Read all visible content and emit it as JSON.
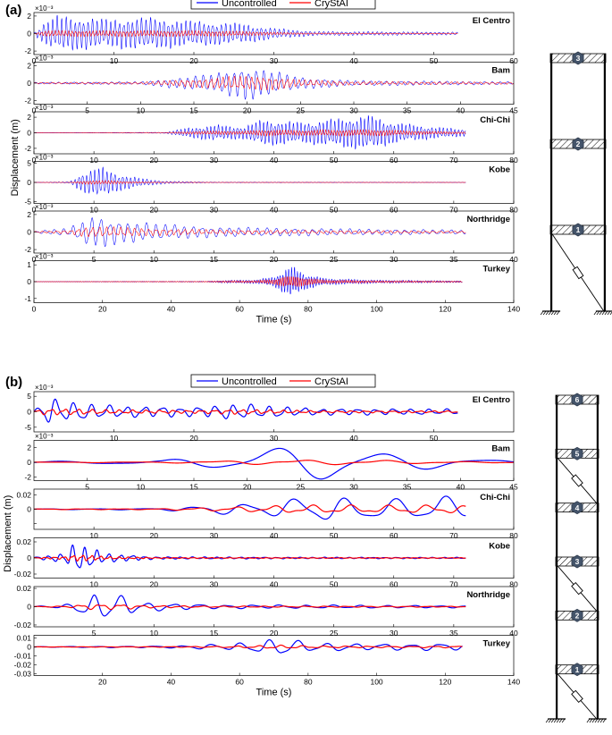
{
  "legend": {
    "uncontrolled": "Uncontrolled",
    "crystal": "CryStAI",
    "colors": {
      "uncontrolled": "#0000ff",
      "crystal": "#ff0000"
    }
  },
  "parts": [
    {
      "label": "(a)",
      "ylabel": "Displacement (m)",
      "xlabel": "Time (s)",
      "structure": {
        "stories": 3,
        "braced_stories": [
          1
        ]
      },
      "panels": [
        {
          "name": "El Centro",
          "exp": "×10⁻³",
          "xlim": [
            0,
            60
          ],
          "xticks": [
            0,
            10,
            20,
            30,
            40,
            50,
            60
          ],
          "yticks": [
            -2,
            0,
            2
          ],
          "ytick_labels": [
            "-2",
            "0",
            "2"
          ],
          "ylim": [
            -2.4,
            2.4
          ],
          "duration": 53,
          "ampU": 2.1,
          "ampC": 0.35,
          "freq": 1.8,
          "env": [
            [
              0,
              0.05
            ],
            [
              1.5,
              0.7
            ],
            [
              3,
              1
            ],
            [
              9,
              0.8
            ],
            [
              14,
              0.9
            ],
            [
              20,
              0.7
            ],
            [
              26,
              0.55
            ],
            [
              30,
              0.3
            ],
            [
              35,
              0.12
            ],
            [
              53,
              0.08
            ]
          ]
        },
        {
          "name": "Bam",
          "exp": "×10⁻³",
          "xlim": [
            0,
            45
          ],
          "xticks": [
            0,
            5,
            10,
            15,
            20,
            25,
            30,
            35,
            40,
            45
          ],
          "yticks": [
            -2,
            0,
            2
          ],
          "ytick_labels": [
            "-2",
            "0",
            "2"
          ],
          "ylim": [
            -2.4,
            2.4
          ],
          "duration": 45,
          "ampU": 2.0,
          "ampC": 0.8,
          "freq": 1.4,
          "env": [
            [
              0,
              0.05
            ],
            [
              10,
              0.08
            ],
            [
              14,
              0.35
            ],
            [
              17,
              0.55
            ],
            [
              20,
              1
            ],
            [
              22,
              0.75
            ],
            [
              25,
              0.35
            ],
            [
              30,
              0.15
            ],
            [
              45,
              0.08
            ]
          ]
        },
        {
          "name": "Chi-Chi",
          "exp": "×10⁻³",
          "xlim": [
            0,
            80
          ],
          "xticks": [
            0,
            10,
            20,
            30,
            40,
            50,
            60,
            70,
            80
          ],
          "yticks": [
            -2,
            0,
            2
          ],
          "ytick_labels": [
            "-2",
            "0",
            "2"
          ],
          "ylim": [
            -2.7,
            2.7
          ],
          "duration": 72,
          "ampU": 2.3,
          "ampC": 0.4,
          "freq": 1.6,
          "env": [
            [
              0,
              0
            ],
            [
              22,
              0.03
            ],
            [
              25,
              0.25
            ],
            [
              30,
              0.45
            ],
            [
              35,
              0.35
            ],
            [
              38,
              0.75
            ],
            [
              45,
              0.6
            ],
            [
              50,
              0.8
            ],
            [
              56,
              1
            ],
            [
              60,
              0.6
            ],
            [
              66,
              0.35
            ],
            [
              72,
              0.2
            ]
          ]
        },
        {
          "name": "Kobe",
          "exp": "×10⁻³",
          "xlim": [
            0,
            80
          ],
          "xticks": [
            0,
            10,
            20,
            30,
            40,
            50,
            60,
            70,
            80
          ],
          "yticks": [
            -5,
            0,
            5
          ],
          "ytick_labels": [
            "-5",
            "0",
            "5"
          ],
          "ylim": [
            -5.5,
            5.5
          ],
          "duration": 72,
          "ampU": 4.2,
          "ampC": 0.5,
          "freq": 1.5,
          "env": [
            [
              0,
              0
            ],
            [
              6,
              0.05
            ],
            [
              8,
              0.6
            ],
            [
              11,
              1
            ],
            [
              14,
              0.55
            ],
            [
              18,
              0.25
            ],
            [
              22,
              0.08
            ],
            [
              30,
              0.02
            ],
            [
              72,
              0.01
            ]
          ]
        },
        {
          "name": "Northridge",
          "exp": "×10⁻³",
          "xlim": [
            0,
            40
          ],
          "xticks": [
            0,
            5,
            10,
            15,
            20,
            25,
            30,
            35,
            40
          ],
          "yticks": [
            -2,
            0,
            2
          ],
          "ytick_labels": [
            "-2",
            "0",
            "2"
          ],
          "ylim": [
            -2.4,
            2.4
          ],
          "duration": 36,
          "ampU": 2.0,
          "ampC": 0.6,
          "freq": 1.3,
          "env": [
            [
              0,
              0.05
            ],
            [
              3,
              0.25
            ],
            [
              5,
              1
            ],
            [
              7,
              0.7
            ],
            [
              10,
              0.5
            ],
            [
              15,
              0.3
            ],
            [
              25,
              0.2
            ],
            [
              36,
              0.12
            ]
          ]
        },
        {
          "name": "Turkey",
          "exp": "×10⁻³",
          "xlim": [
            0,
            140
          ],
          "xticks": [
            0,
            20,
            40,
            60,
            80,
            100,
            120,
            140
          ],
          "yticks": [
            -1,
            0,
            1
          ],
          "ytick_labels": [
            "-1",
            "0",
            "1"
          ],
          "ylim": [
            -1.25,
            1.25
          ],
          "duration": 125,
          "ampU": 1.0,
          "ampC": 0.35,
          "freq": 1.2,
          "env": [
            [
              0,
              0
            ],
            [
              50,
              0.02
            ],
            [
              55,
              0.08
            ],
            [
              65,
              0.12
            ],
            [
              70,
              0.3
            ],
            [
              75,
              1
            ],
            [
              79,
              0.5
            ],
            [
              85,
              0.2
            ],
            [
              100,
              0.1
            ],
            [
              125,
              0.05
            ]
          ]
        }
      ]
    },
    {
      "label": "(b)",
      "ylabel": "Displacement (m)",
      "xlabel": "Time (s)",
      "structure": {
        "stories": 6,
        "braced_stories": [
          1,
          3,
          5
        ]
      },
      "panels": [
        {
          "name": "El Centro",
          "exp": "×10⁻³",
          "xlim": [
            0,
            60
          ],
          "xticks": [
            10,
            20,
            30,
            40,
            50
          ],
          "yticks": [
            -5,
            0,
            5
          ],
          "ytick_labels": [
            "-5",
            "0",
            "5"
          ],
          "ylim": [
            -6.5,
            6.5
          ],
          "duration": 53,
          "ampU": 4.5,
          "ampC": 1.0,
          "freq": 0.45,
          "env": [
            [
              0,
              0.2
            ],
            [
              2,
              1
            ],
            [
              5,
              0.7
            ],
            [
              10,
              0.45
            ],
            [
              20,
              0.35
            ],
            [
              25,
              0.6
            ],
            [
              28,
              0.5
            ],
            [
              35,
              0.25
            ],
            [
              53,
              0.2
            ]
          ]
        },
        {
          "name": "Bam",
          "exp": "×10⁻³",
          "xlim": [
            0,
            45
          ],
          "xticks": [
            5,
            10,
            15,
            20,
            25,
            30,
            35,
            40,
            45
          ],
          "yticks": [
            -2,
            0,
            2
          ],
          "ytick_labels": [
            "-2",
            "0",
            "2"
          ],
          "ylim": [
            -2.5,
            3.0
          ],
          "duration": 45,
          "ampU": 2.7,
          "ampC": 0.35,
          "freq": 0.1,
          "env": [
            [
              0,
              0.05
            ],
            [
              12,
              0.1
            ],
            [
              17,
              0.4
            ],
            [
              22,
              0.7
            ],
            [
              27,
              1
            ],
            [
              30,
              1
            ],
            [
              34,
              0.5
            ],
            [
              40,
              0.2
            ],
            [
              45,
              0.1
            ]
          ]
        },
        {
          "name": "Chi-Chi",
          "exp": "",
          "xlim": [
            0,
            80
          ],
          "xticks": [
            10,
            20,
            30,
            40,
            50,
            60,
            70,
            80
          ],
          "yticks": [
            -0.02,
            0,
            0.02
          ],
          "ytick_labels": [
            "",
            "0",
            "0.02"
          ],
          "ylim": [
            -0.028,
            0.028
          ],
          "duration": 72,
          "ampU": 0.02,
          "ampC": 0.006,
          "freq": 0.12,
          "env": [
            [
              0,
              0.02
            ],
            [
              20,
              0.05
            ],
            [
              30,
              0.3
            ],
            [
              40,
              0.6
            ],
            [
              50,
              1
            ],
            [
              57,
              0.65
            ],
            [
              68,
              1
            ],
            [
              72,
              0.6
            ]
          ]
        },
        {
          "name": "Kobe",
          "exp": "",
          "xlim": [
            0,
            80
          ],
          "xticks": [
            10,
            20,
            30,
            40,
            50,
            60,
            70,
            80
          ],
          "yticks": [
            -0.02,
            0,
            0.02
          ],
          "ytick_labels": [
            "-0.02",
            "0",
            "0.02"
          ],
          "ylim": [
            -0.025,
            0.025
          ],
          "duration": 72,
          "ampU": 0.02,
          "ampC": 0.004,
          "freq": 0.5,
          "env": [
            [
              0,
              0.05
            ],
            [
              5,
              0.3
            ],
            [
              7,
              1
            ],
            [
              9,
              0.7
            ],
            [
              12,
              0.3
            ],
            [
              20,
              0.08
            ],
            [
              40,
              0.05
            ],
            [
              72,
              0.04
            ]
          ]
        },
        {
          "name": "Northridge",
          "exp": "",
          "xlim": [
            0,
            40
          ],
          "xticks": [
            5,
            10,
            15,
            20,
            25,
            30,
            35,
            40
          ],
          "yticks": [
            -0.02,
            0,
            0.02
          ],
          "ytick_labels": [
            "-0.02",
            "0",
            "0.02"
          ],
          "ylim": [
            -0.022,
            0.022
          ],
          "duration": 36,
          "ampU": 0.015,
          "ampC": 0.003,
          "freq": 0.45,
          "env": [
            [
              0,
              0.02
            ],
            [
              3,
              0.2
            ],
            [
              5,
              1
            ],
            [
              7,
              0.9
            ],
            [
              9,
              0.35
            ],
            [
              15,
              0.15
            ],
            [
              25,
              0.12
            ],
            [
              36,
              0.08
            ]
          ]
        },
        {
          "name": "Turkey",
          "exp": "",
          "xlim": [
            0,
            140
          ],
          "xticks": [
            20,
            40,
            60,
            80,
            100,
            120,
            140
          ],
          "yticks": [
            0.01,
            0,
            -0.01,
            -0.02,
            -0.03
          ],
          "ytick_labels": [
            "0.01",
            "0",
            "-0.01",
            "-0.02",
            "-0.03"
          ],
          "ylim": [
            -0.032,
            0.013
          ],
          "duration": 125,
          "ampU": 0.012,
          "ampC": 0.002,
          "freq": 0.12,
          "env": [
            [
              0,
              0.02
            ],
            [
              40,
              0.1
            ],
            [
              55,
              0.3
            ],
            [
              65,
              0.5
            ],
            [
              72,
              1
            ],
            [
              76,
              0.6
            ],
            [
              85,
              0.4
            ],
            [
              100,
              0.3
            ],
            [
              125,
              0.35
            ]
          ]
        }
      ]
    }
  ]
}
